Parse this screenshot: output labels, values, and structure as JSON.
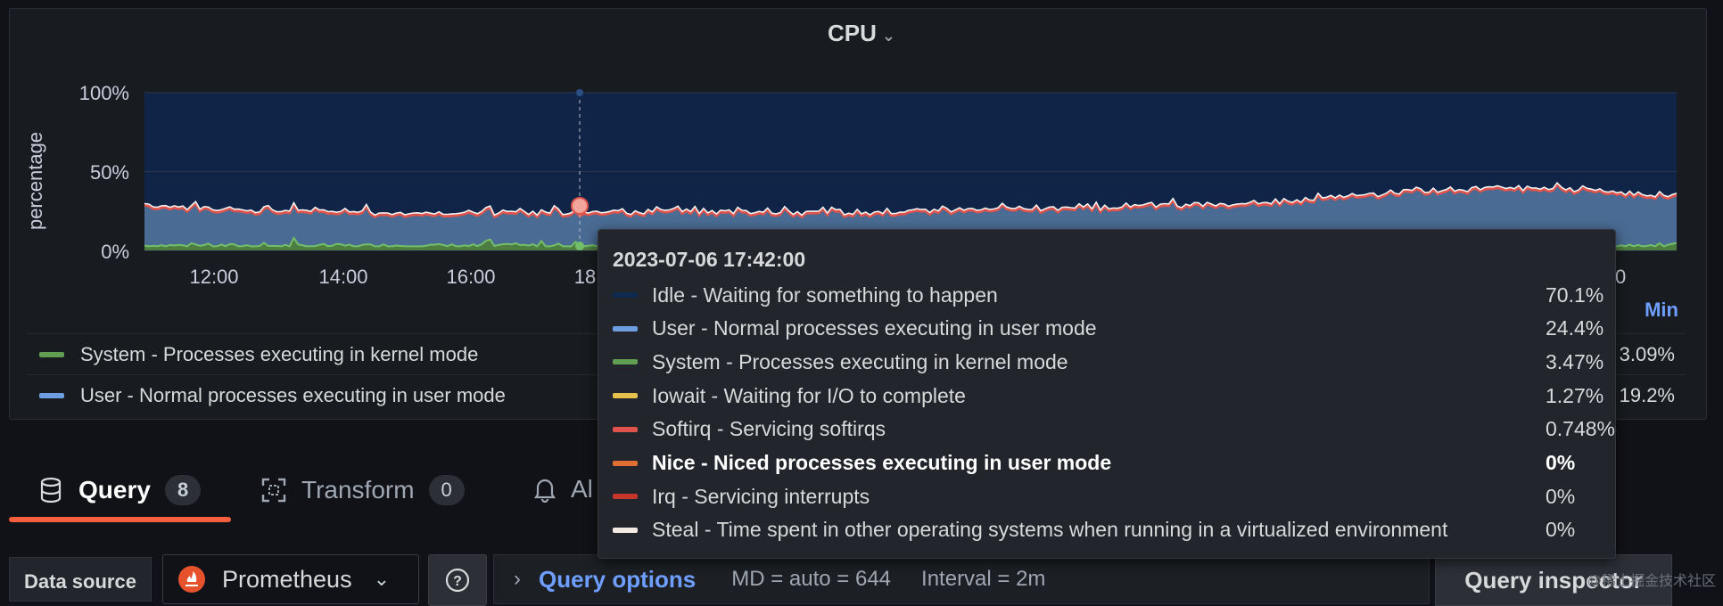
{
  "panel": {
    "title": "CPU",
    "y_axis_label": "percentage",
    "y_ticks": [
      "100%",
      "50%",
      "0%"
    ],
    "x_ticks": [
      "12:00",
      "14:00",
      "16:00",
      "18",
      ":00"
    ],
    "legend_min_header": "Min",
    "legend": [
      {
        "label": "System - Processes executing in kernel mode",
        "color": "#629e51",
        "min": "3.09%"
      },
      {
        "label": "User - Normal processes executing in user mode",
        "color": "#6d9ee2",
        "min": "19.2%"
      }
    ]
  },
  "chart_data": {
    "type": "area",
    "title": "CPU",
    "ylabel": "percentage",
    "ylim": [
      0,
      100
    ],
    "x_ticks": [
      "12:00",
      "14:00",
      "16:00",
      "18",
      ":00"
    ],
    "series": [
      {
        "name": "System - Processes executing in kernel mode",
        "color": "#629e51",
        "values": [
          3.5,
          3.4,
          3.3,
          3.4,
          3.5,
          3.3,
          3.4,
          3.6,
          3.5,
          3.4,
          3.3,
          3.5,
          3.4,
          3.5,
          3.6,
          3.4,
          3.5,
          3.6,
          3.5,
          3.4,
          3.5,
          3.6,
          3.5,
          3.4
        ]
      },
      {
        "name": "User - Normal processes executing in user mode",
        "color": "#6d9ee2",
        "values": [
          26,
          23,
          22,
          21,
          21,
          20,
          21,
          21,
          22,
          21,
          21,
          21,
          23,
          23,
          23,
          25,
          26,
          27,
          31,
          34,
          36,
          36,
          34,
          31
        ]
      },
      {
        "name": "Idle - Waiting for something to happen",
        "color": "#1f3d6b",
        "values": [
          66,
          69,
          70,
          71,
          71,
          72,
          71,
          71,
          70,
          71,
          71,
          71,
          69,
          69,
          69,
          67,
          66,
          65,
          61,
          58,
          56,
          56,
          58,
          61
        ]
      }
    ]
  },
  "tooltip": {
    "time": "2023-07-06 17:42:00",
    "rows": [
      {
        "label": "Idle - Waiting for something to happen",
        "value": "70.1%",
        "color": "#0e2a4f",
        "bold": false
      },
      {
        "label": "User - Normal processes executing in user mode",
        "value": "24.4%",
        "color": "#6d9ee2",
        "bold": false
      },
      {
        "label": "System - Processes executing in kernel mode",
        "value": "3.47%",
        "color": "#629e51",
        "bold": false
      },
      {
        "label": "Iowait - Waiting for I/O to complete",
        "value": "1.27%",
        "color": "#e5c04a",
        "bold": false
      },
      {
        "label": "Softirq - Servicing softirqs",
        "value": "0.748%",
        "color": "#e0534b",
        "bold": false
      },
      {
        "label": "Nice - Niced processes executing in user mode",
        "value": "0%",
        "color": "#e06d33",
        "bold": true
      },
      {
        "label": "Irq - Servicing interrupts",
        "value": "0%",
        "color": "#c4362c",
        "bold": false
      },
      {
        "label": "Steal - Time spent in other operating systems when running in a virtualized environment",
        "value": "0%",
        "color": "#f2e9e2",
        "bold": false
      }
    ]
  },
  "tabs": [
    {
      "label": "Query",
      "count": "8",
      "icon": "database-icon",
      "active": true
    },
    {
      "label": "Transform",
      "count": "0",
      "icon": "transform-icon",
      "active": false
    },
    {
      "label": "Al",
      "icon": "bell-icon",
      "active": false
    }
  ],
  "query_bar": {
    "data_source_label": "Data source",
    "data_source_value": "Prometheus",
    "query_options_label": "Query options",
    "md_text": "MD = auto = 644",
    "interval_text": "Interval = 2m",
    "query_inspector_label": "Query inspector"
  },
  "watermark": "@稀土掘金技术社区",
  "colors": {
    "accent": "#f55f3e",
    "link": "#6e9fff"
  }
}
